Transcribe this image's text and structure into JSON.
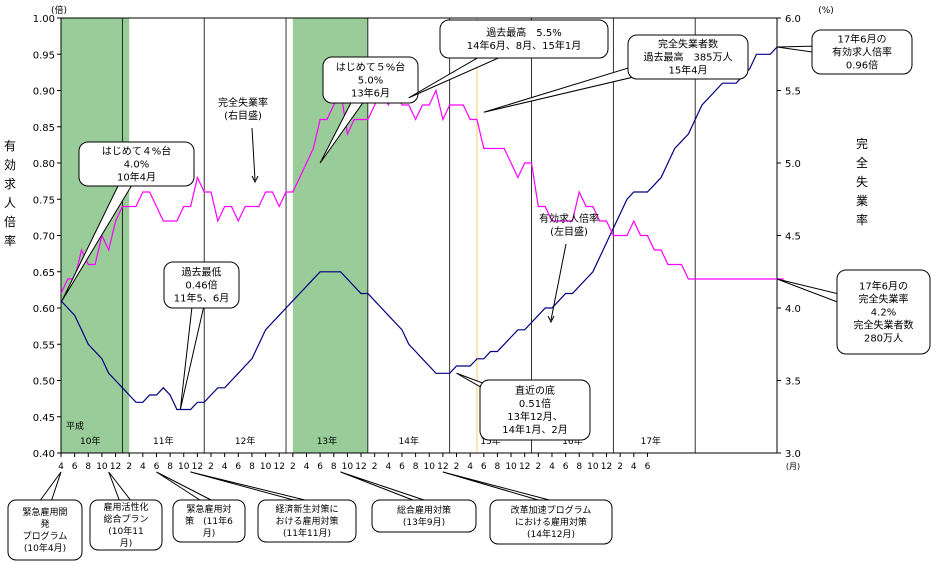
{
  "chart_data": {
    "type": "line",
    "left_axis": {
      "unit": "(倍)",
      "label": "有効求人倍率",
      "ylim": [
        0.4,
        1.0
      ],
      "ticks": [
        "0.40",
        "0.45",
        "0.50",
        "0.55",
        "0.60",
        "0.65",
        "0.70",
        "0.75",
        "0.80",
        "0.85",
        "0.90",
        "0.95",
        "1.00"
      ]
    },
    "right_axis": {
      "unit": "(%)",
      "label": "完全失業率",
      "ylim": [
        3.0,
        6.0
      ],
      "ticks": [
        "3.0",
        "3.5",
        "4.0",
        "4.5",
        "5.0",
        "5.5",
        "6.0"
      ]
    },
    "x_axis": {
      "month_ticks": [
        "4",
        "6",
        "8",
        "10",
        "12",
        "2",
        "4",
        "6",
        "8",
        "10",
        "12",
        "2",
        "4",
        "6",
        "8",
        "10",
        "12",
        "2",
        "4",
        "6",
        "8",
        "10",
        "12",
        "2",
        "4",
        "6",
        "8",
        "10",
        "12",
        "2",
        "4",
        "6",
        "8",
        "10",
        "12",
        "2",
        "4",
        "6",
        "8",
        "10",
        "12",
        "2",
        "4",
        "6"
      ],
      "month_unit": "(月)",
      "era": "平成",
      "years": [
        "10年",
        "11年",
        "12年",
        "13年",
        "14年",
        "15年",
        "16年",
        "17年"
      ]
    },
    "shaded_periods": [
      {
        "start": "10年4月",
        "end": "11年2月"
      },
      {
        "start": "13年2月",
        "end": "14年1月"
      }
    ],
    "series": [
      {
        "name": "有効求人倍率",
        "color": "#000080",
        "axis": "left",
        "values": [
          0.61,
          0.6,
          0.59,
          0.57,
          0.55,
          0.54,
          0.53,
          0.51,
          0.5,
          0.49,
          0.48,
          0.47,
          0.47,
          0.48,
          0.48,
          0.49,
          0.48,
          0.46,
          0.46,
          0.46,
          0.47,
          0.47,
          0.48,
          0.49,
          0.49,
          0.5,
          0.51,
          0.52,
          0.53,
          0.55,
          0.57,
          0.58,
          0.59,
          0.6,
          0.61,
          0.62,
          0.63,
          0.64,
          0.65,
          0.65,
          0.65,
          0.65,
          0.64,
          0.63,
          0.62,
          0.62,
          0.61,
          0.6,
          0.59,
          0.58,
          0.57,
          0.55,
          0.54,
          0.53,
          0.52,
          0.51,
          0.51,
          0.51,
          0.52,
          0.52,
          0.52,
          0.53,
          0.53,
          0.54,
          0.54,
          0.55,
          0.56,
          0.57,
          0.57,
          0.58,
          0.59,
          0.6,
          0.6,
          0.61,
          0.62,
          0.62,
          0.63,
          0.64,
          0.65,
          0.67,
          0.69,
          0.71,
          0.73,
          0.75,
          0.76,
          0.76,
          0.76,
          0.77,
          0.78,
          0.8,
          0.82,
          0.83,
          0.84,
          0.86,
          0.88,
          0.89,
          0.9,
          0.91,
          0.91,
          0.91,
          0.92,
          0.93,
          0.95,
          0.95,
          0.95,
          0.96
        ]
      },
      {
        "name": "完全失業率",
        "color": "#ff00ff",
        "axis": "right",
        "values": [
          4.1,
          4.2,
          4.2,
          4.4,
          4.3,
          4.3,
          4.5,
          4.4,
          4.6,
          4.7,
          4.7,
          4.7,
          4.8,
          4.8,
          4.7,
          4.6,
          4.6,
          4.6,
          4.7,
          4.7,
          4.9,
          4.8,
          4.8,
          4.6,
          4.7,
          4.7,
          4.6,
          4.7,
          4.7,
          4.7,
          4.8,
          4.8,
          4.7,
          4.8,
          4.8,
          4.9,
          5.0,
          5.1,
          5.3,
          5.3,
          5.4,
          5.5,
          5.2,
          5.3,
          5.3,
          5.3,
          5.4,
          5.5,
          5.4,
          5.5,
          5.4,
          5.4,
          5.3,
          5.4,
          5.4,
          5.5,
          5.3,
          5.4,
          5.4,
          5.4,
          5.3,
          5.3,
          5.1,
          5.1,
          5.1,
          5.1,
          5.0,
          4.9,
          5.0,
          5.0,
          4.7,
          4.7,
          4.6,
          4.6,
          4.6,
          4.6,
          4.8,
          4.7,
          4.7,
          4.6,
          4.6,
          4.5,
          4.5,
          4.5,
          4.6,
          4.5,
          4.5,
          4.4,
          4.4,
          4.3,
          4.3,
          4.3,
          4.2,
          4.2,
          4.2,
          4.2,
          4.2,
          4.2,
          4.2,
          4.2,
          4.2,
          4.2,
          4.2,
          4.2,
          4.2,
          4.2,
          4.2
        ]
      }
    ],
    "callouts": [
      {
        "lines": [
          "はじめて４%台",
          "4.0%",
          "10年4月"
        ]
      },
      {
        "lines": [
          "過去最低",
          "0.46倍",
          "11年5、6月"
        ]
      },
      {
        "lines": [
          "完全失業率",
          "(右目盛)"
        ]
      },
      {
        "lines": [
          "はじめて５%台",
          "5.0%",
          "13年6月"
        ]
      },
      {
        "lines": [
          "過去最高　5.5%",
          "14年6月、8月、15年1月"
        ]
      },
      {
        "lines": [
          "完全失業者数",
          "過去最高　385万人",
          "15年4月"
        ]
      },
      {
        "lines": [
          "17年6月の",
          "有効求人倍率",
          "0.96倍"
        ]
      },
      {
        "lines": [
          "有効求人倍率",
          "(左目盛)"
        ]
      },
      {
        "lines": [
          "直近の底",
          "0.51倍",
          "13年12月、",
          "14年1月、2月"
        ]
      },
      {
        "lines": [
          "17年6月の",
          "完全失業率",
          "4.2%",
          "完全失業者数",
          "280万人"
        ]
      }
    ],
    "policy_boxes": [
      {
        "lines": [
          "緊急雇用開",
          "発",
          "プログラム",
          "(10年4月)"
        ]
      },
      {
        "lines": [
          "雇用活性化",
          "総合プラン",
          "(10年11",
          "月)"
        ]
      },
      {
        "lines": [
          "緊急雇用対",
          "策　(11年6",
          "月)"
        ]
      },
      {
        "lines": [
          "経済新生対策に",
          "おける雇用対策",
          "(11年11月)"
        ]
      },
      {
        "lines": [
          "総合雇用対策",
          "(13年9月)"
        ]
      },
      {
        "lines": [
          "改革加速プログラム",
          "における雇用対策",
          "(14年12月)"
        ]
      }
    ]
  }
}
